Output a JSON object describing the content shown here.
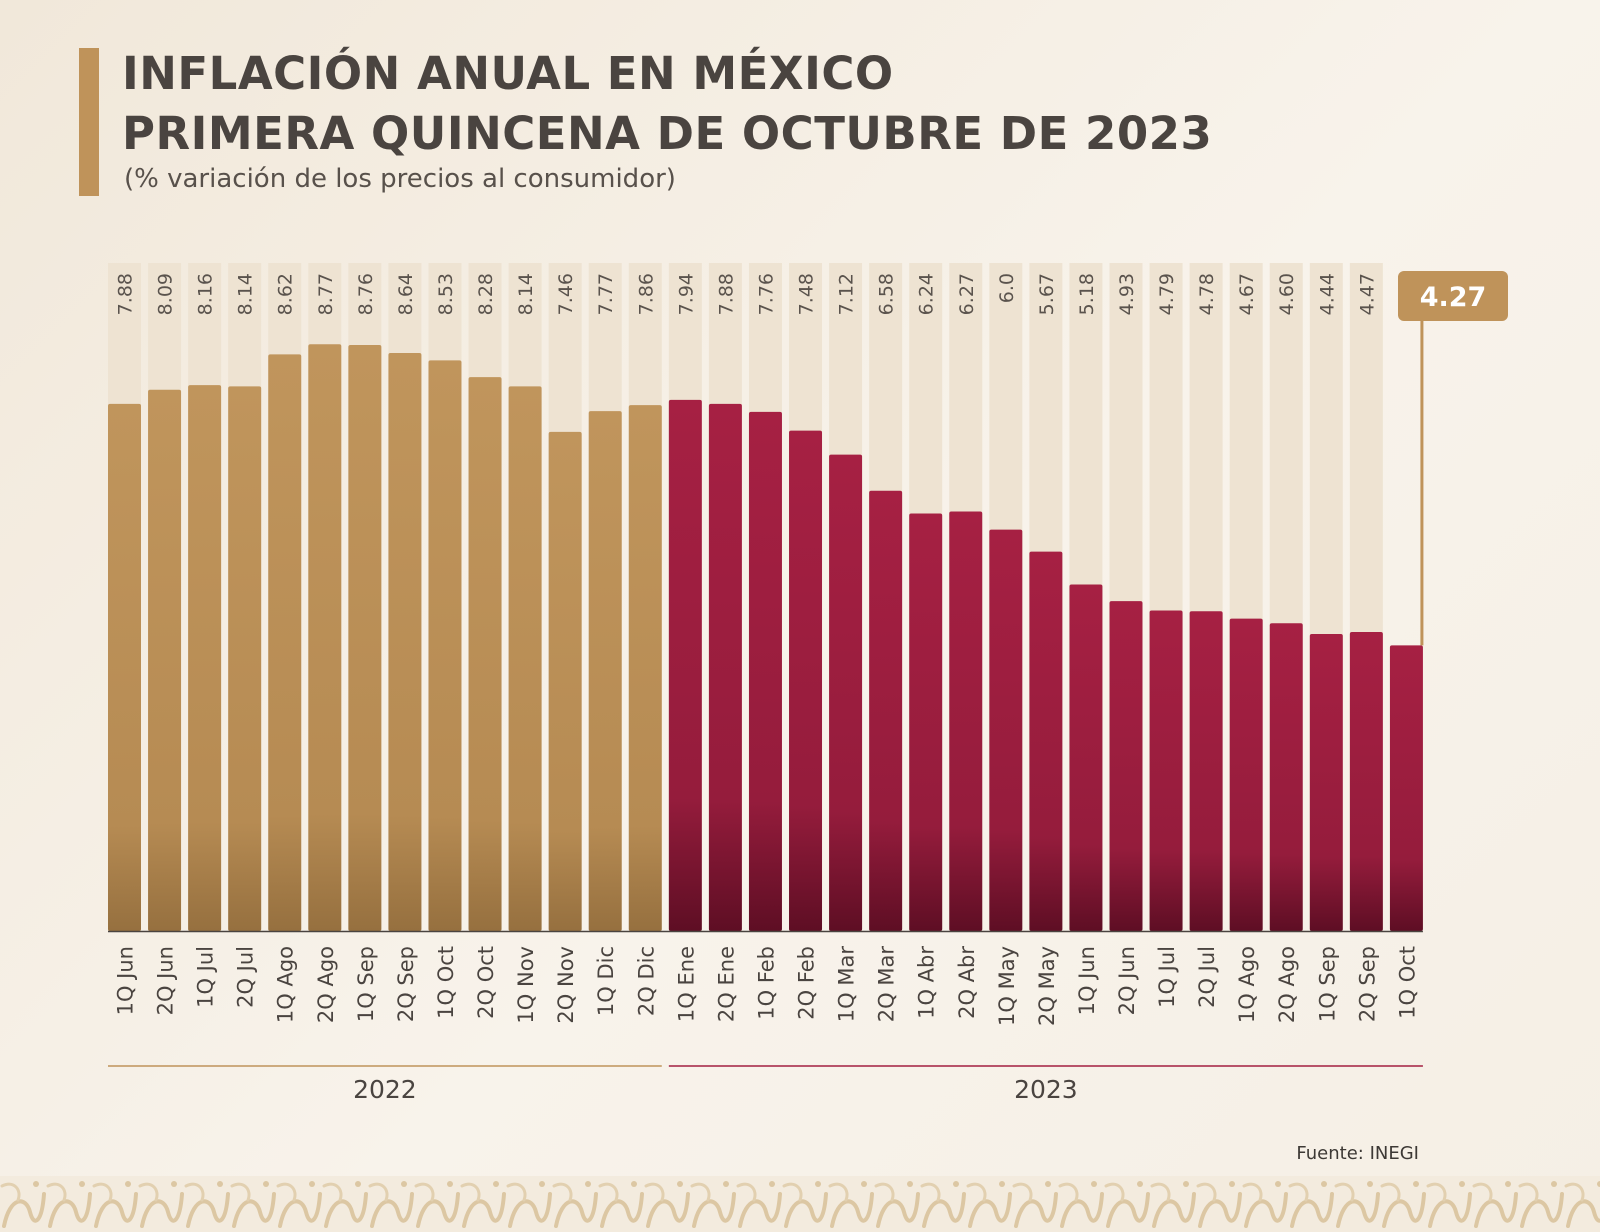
{
  "title_line1": "INFLACIÓN ANUAL EN MÉXICO",
  "title_line2": "PRIMERA QUINCENA DE OCTUBRE DE 2023",
  "subtitle": "(% variación de los precios al consumidor)",
  "source": "Fuente: INEGI",
  "colors": {
    "gold": "#bf935a",
    "gold_dark": "#9a7445",
    "maroon": "#a31f41",
    "maroon_dark": "#6b1028",
    "column_bg": "#efe4d3",
    "text": "#4a4440"
  },
  "chart_data": {
    "type": "bar",
    "title": "INFLACIÓN ANUAL EN MÉXICO PRIMERA QUINCENA DE OCTUBRE DE 2023",
    "subtitle": "(% variación de los precios al consumidor)",
    "categories": [
      "1Q Jun",
      "2Q Jun",
      "1Q Jul",
      "2Q Jul",
      "1Q Ago",
      "2Q Ago",
      "1Q Sep",
      "2Q Sep",
      "1Q Oct",
      "2Q Oct",
      "1Q Nov",
      "2Q Nov",
      "1Q Dic",
      "2Q Dic",
      "1Q Ene",
      "2Q Ene",
      "1Q Feb",
      "2Q Feb",
      "1Q Mar",
      "2Q Mar",
      "1Q Abr",
      "2Q Abr",
      "1Q May",
      "2Q May",
      "1Q Jun",
      "2Q Jun",
      "1Q Jul",
      "2Q Jul",
      "1Q Ago",
      "2Q Ago",
      "1Q Sep",
      "2Q Sep",
      "1Q Oct"
    ],
    "value_labels": [
      "7.88",
      "8.09",
      "8.16",
      "8.14",
      "8.62",
      "8.77",
      "8.76",
      "8.64",
      "8.53",
      "8.28",
      "8.14",
      "7.46",
      "7.77",
      "7.86",
      "7.94",
      "7.88",
      "7.76",
      "7.48",
      "7.12",
      "6.58",
      "6.24",
      "6.27",
      "6.0",
      "5.67",
      "5.18",
      "4.93",
      "4.79",
      "4.78",
      "4.67",
      "4.60",
      "4.44",
      "4.47",
      "4.27"
    ],
    "values": [
      7.88,
      8.09,
      8.16,
      8.14,
      8.62,
      8.77,
      8.76,
      8.64,
      8.53,
      8.28,
      8.14,
      7.46,
      7.77,
      7.86,
      7.94,
      7.88,
      7.76,
      7.48,
      7.12,
      6.58,
      6.24,
      6.27,
      6.0,
      5.67,
      5.18,
      4.93,
      4.79,
      4.78,
      4.67,
      4.6,
      4.44,
      4.47,
      4.27
    ],
    "groups": [
      {
        "label": "2022",
        "start": 0,
        "end": 13,
        "color": "#bf935a"
      },
      {
        "label": "2023",
        "start": 14,
        "end": 32,
        "color": "#a31f41"
      }
    ],
    "highlight": {
      "index": 32,
      "label": "4.27"
    },
    "ylim": [
      0,
      9
    ],
    "grid": false
  }
}
